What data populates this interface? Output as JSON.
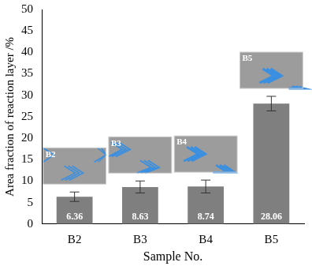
{
  "chart_data": {
    "type": "bar",
    "categories": [
      "B2",
      "B3",
      "B4",
      "B5"
    ],
    "values": [
      6.36,
      8.63,
      8.74,
      28.06
    ],
    "errors": [
      1.1,
      1.4,
      1.5,
      1.7
    ],
    "color": "#7f7f7f",
    "x_label": "Sample No.",
    "y_label": "Area fraction of reaction layer /%",
    "ylim": [
      0,
      50
    ],
    "yticks": [
      0,
      5,
      10,
      15,
      20,
      25,
      30,
      35,
      40,
      45,
      50
    ],
    "grid": false,
    "data_labels": true,
    "annotations": [
      "B2",
      "B3",
      "B4",
      "B5"
    ]
  }
}
